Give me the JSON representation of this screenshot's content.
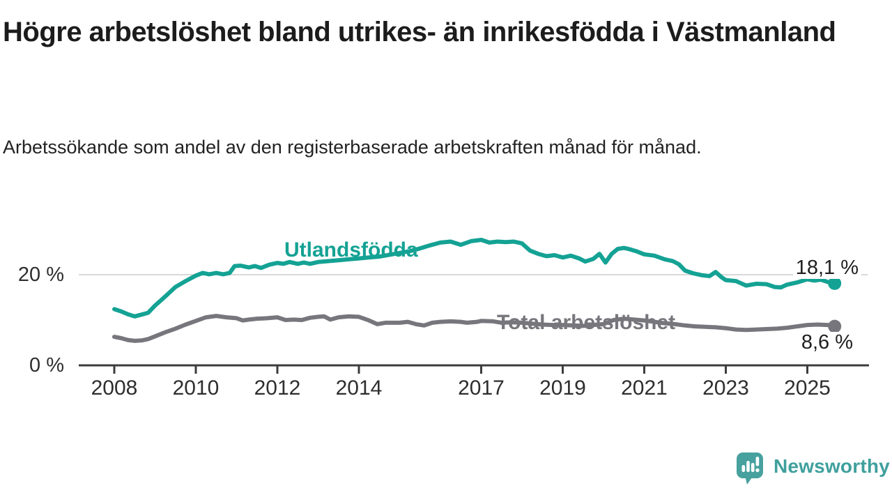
{
  "header": {
    "title": "Högre arbetslöshet bland utrikes- än inrikesfödda i Västmanland",
    "subtitle": "Arbetssökande som andel av den registerbaserade arbetskraften månad för månad."
  },
  "chart_data": {
    "type": "line",
    "title": "Högre arbetslöshet bland utrikes- än inrikesfödda i Västmanland",
    "subtitle": "Arbetssökande som andel av den registerbaserade arbetskraften månad för månad.",
    "unit": "%",
    "grid": "horizontal gridline at 20 % only",
    "legend_position": "labels inline next to lines",
    "x_axis": {
      "tick_labels": [
        "2008",
        "2010",
        "2012",
        "2014",
        "2017",
        "2019",
        "2021",
        "2023",
        "2025"
      ],
      "tick_values": [
        2008,
        2010,
        2012,
        2014,
        2017,
        2019,
        2021,
        2023,
        2025
      ],
      "range": [
        2008,
        2025.67
      ]
    },
    "y_axis": {
      "ticks": [
        {
          "value": 0,
          "label": "0 %"
        },
        {
          "value": 20,
          "label": "20 %"
        }
      ],
      "range": [
        0,
        30
      ]
    },
    "series": [
      {
        "name": "Utlandsfödda",
        "color": "#14a294",
        "end_value": 18.1,
        "end_label": "18,1 %",
        "data": [
          [
            2008.0,
            12.4
          ],
          [
            2008.17,
            11.9
          ],
          [
            2008.33,
            11.3
          ],
          [
            2008.5,
            10.8
          ],
          [
            2008.67,
            11.2
          ],
          [
            2008.83,
            11.6
          ],
          [
            2009.0,
            13.2
          ],
          [
            2009.25,
            15.2
          ],
          [
            2009.5,
            17.3
          ],
          [
            2009.75,
            18.6
          ],
          [
            2010.0,
            19.8
          ],
          [
            2010.17,
            20.4
          ],
          [
            2010.33,
            20.1
          ],
          [
            2010.5,
            20.4
          ],
          [
            2010.67,
            20.1
          ],
          [
            2010.83,
            20.4
          ],
          [
            2010.95,
            21.9
          ],
          [
            2011.1,
            22.0
          ],
          [
            2011.3,
            21.6
          ],
          [
            2011.45,
            21.9
          ],
          [
            2011.6,
            21.5
          ],
          [
            2011.8,
            22.2
          ],
          [
            2012.0,
            22.6
          ],
          [
            2012.15,
            22.4
          ],
          [
            2012.3,
            22.8
          ],
          [
            2012.5,
            22.4
          ],
          [
            2012.65,
            22.7
          ],
          [
            2012.8,
            22.4
          ],
          [
            2013.0,
            22.8
          ],
          [
            2013.25,
            23.0
          ],
          [
            2013.5,
            23.2
          ],
          [
            2013.75,
            23.4
          ],
          [
            2014.0,
            23.6
          ],
          [
            2014.25,
            23.8
          ],
          [
            2014.5,
            24.0
          ],
          [
            2014.75,
            24.4
          ],
          [
            2015.0,
            24.8
          ],
          [
            2015.25,
            25.2
          ],
          [
            2015.5,
            25.8
          ],
          [
            2015.75,
            26.5
          ],
          [
            2016.0,
            27.1
          ],
          [
            2016.25,
            27.3
          ],
          [
            2016.5,
            26.6
          ],
          [
            2016.75,
            27.4
          ],
          [
            2017.0,
            27.7
          ],
          [
            2017.2,
            27.1
          ],
          [
            2017.4,
            27.3
          ],
          [
            2017.6,
            27.2
          ],
          [
            2017.8,
            27.3
          ],
          [
            2018.0,
            26.9
          ],
          [
            2018.2,
            25.3
          ],
          [
            2018.4,
            24.6
          ],
          [
            2018.6,
            24.1
          ],
          [
            2018.8,
            24.3
          ],
          [
            2019.0,
            23.8
          ],
          [
            2019.2,
            24.2
          ],
          [
            2019.4,
            23.6
          ],
          [
            2019.55,
            22.9
          ],
          [
            2019.75,
            23.5
          ],
          [
            2019.9,
            24.6
          ],
          [
            2020.05,
            22.7
          ],
          [
            2020.2,
            24.6
          ],
          [
            2020.35,
            25.7
          ],
          [
            2020.5,
            25.9
          ],
          [
            2020.65,
            25.6
          ],
          [
            2020.8,
            25.2
          ],
          [
            2021.0,
            24.5
          ],
          [
            2021.25,
            24.2
          ],
          [
            2021.5,
            23.4
          ],
          [
            2021.7,
            23.0
          ],
          [
            2021.85,
            22.3
          ],
          [
            2022.0,
            20.9
          ],
          [
            2022.2,
            20.3
          ],
          [
            2022.4,
            19.9
          ],
          [
            2022.6,
            19.7
          ],
          [
            2022.75,
            20.6
          ],
          [
            2022.9,
            19.4
          ],
          [
            2023.0,
            18.8
          ],
          [
            2023.25,
            18.6
          ],
          [
            2023.5,
            17.6
          ],
          [
            2023.75,
            18.0
          ],
          [
            2024.0,
            17.9
          ],
          [
            2024.2,
            17.3
          ],
          [
            2024.35,
            17.2
          ],
          [
            2024.5,
            17.8
          ],
          [
            2024.75,
            18.3
          ],
          [
            2025.0,
            19.0
          ],
          [
            2025.17,
            18.7
          ],
          [
            2025.33,
            18.9
          ],
          [
            2025.5,
            18.4
          ],
          [
            2025.67,
            18.1
          ]
        ]
      },
      {
        "name": "Total arbetslöshet",
        "color": "#77767c",
        "end_value": 8.6,
        "end_label": "8,6 %",
        "data": [
          [
            2008.0,
            6.3
          ],
          [
            2008.17,
            6.0
          ],
          [
            2008.33,
            5.6
          ],
          [
            2008.5,
            5.4
          ],
          [
            2008.67,
            5.5
          ],
          [
            2008.83,
            5.8
          ],
          [
            2009.0,
            6.4
          ],
          [
            2009.25,
            7.3
          ],
          [
            2009.5,
            8.1
          ],
          [
            2009.75,
            9.0
          ],
          [
            2010.0,
            9.8
          ],
          [
            2010.25,
            10.6
          ],
          [
            2010.5,
            10.9
          ],
          [
            2010.75,
            10.6
          ],
          [
            2011.0,
            10.4
          ],
          [
            2011.15,
            9.9
          ],
          [
            2011.3,
            10.1
          ],
          [
            2011.5,
            10.3
          ],
          [
            2011.75,
            10.4
          ],
          [
            2012.0,
            10.6
          ],
          [
            2012.2,
            10.0
          ],
          [
            2012.4,
            10.1
          ],
          [
            2012.6,
            10.0
          ],
          [
            2012.8,
            10.5
          ],
          [
            2013.0,
            10.7
          ],
          [
            2013.15,
            10.8
          ],
          [
            2013.3,
            10.1
          ],
          [
            2013.5,
            10.6
          ],
          [
            2013.75,
            10.8
          ],
          [
            2014.0,
            10.7
          ],
          [
            2014.25,
            9.9
          ],
          [
            2014.45,
            9.1
          ],
          [
            2014.65,
            9.4
          ],
          [
            2014.85,
            9.4
          ],
          [
            2015.0,
            9.4
          ],
          [
            2015.2,
            9.6
          ],
          [
            2015.4,
            9.1
          ],
          [
            2015.6,
            8.8
          ],
          [
            2015.8,
            9.4
          ],
          [
            2016.0,
            9.6
          ],
          [
            2016.25,
            9.7
          ],
          [
            2016.5,
            9.6
          ],
          [
            2016.65,
            9.4
          ],
          [
            2016.9,
            9.6
          ],
          [
            2017.0,
            9.8
          ],
          [
            2017.3,
            9.7
          ],
          [
            2017.5,
            9.4
          ],
          [
            2017.75,
            9.5
          ],
          [
            2018.0,
            9.4
          ],
          [
            2018.25,
            9.2
          ],
          [
            2018.5,
            9.0
          ],
          [
            2018.75,
            8.9
          ],
          [
            2019.0,
            8.9
          ],
          [
            2019.25,
            8.8
          ],
          [
            2019.5,
            8.7
          ],
          [
            2019.75,
            8.9
          ],
          [
            2020.0,
            9.1
          ],
          [
            2020.25,
            10.0
          ],
          [
            2020.5,
            10.3
          ],
          [
            2020.75,
            10.1
          ],
          [
            2021.0,
            9.9
          ],
          [
            2021.25,
            9.6
          ],
          [
            2021.5,
            9.3
          ],
          [
            2021.75,
            9.1
          ],
          [
            2022.0,
            8.8
          ],
          [
            2022.25,
            8.6
          ],
          [
            2022.5,
            8.5
          ],
          [
            2022.75,
            8.4
          ],
          [
            2023.0,
            8.2
          ],
          [
            2023.25,
            7.9
          ],
          [
            2023.5,
            7.8
          ],
          [
            2023.75,
            7.9
          ],
          [
            2024.0,
            8.0
          ],
          [
            2024.25,
            8.1
          ],
          [
            2024.5,
            8.3
          ],
          [
            2024.75,
            8.6
          ],
          [
            2025.0,
            8.9
          ],
          [
            2025.25,
            9.0
          ],
          [
            2025.5,
            8.9
          ],
          [
            2025.67,
            8.6
          ]
        ]
      }
    ],
    "colors": {
      "axis": "#3c3c3c",
      "grid": "#d8d8d8",
      "text": "#1c1c1c"
    }
  },
  "branding": {
    "name": "Newsworthy",
    "icon": "bar-chart-speech-bubble-icon",
    "color": "#3fa09d"
  }
}
